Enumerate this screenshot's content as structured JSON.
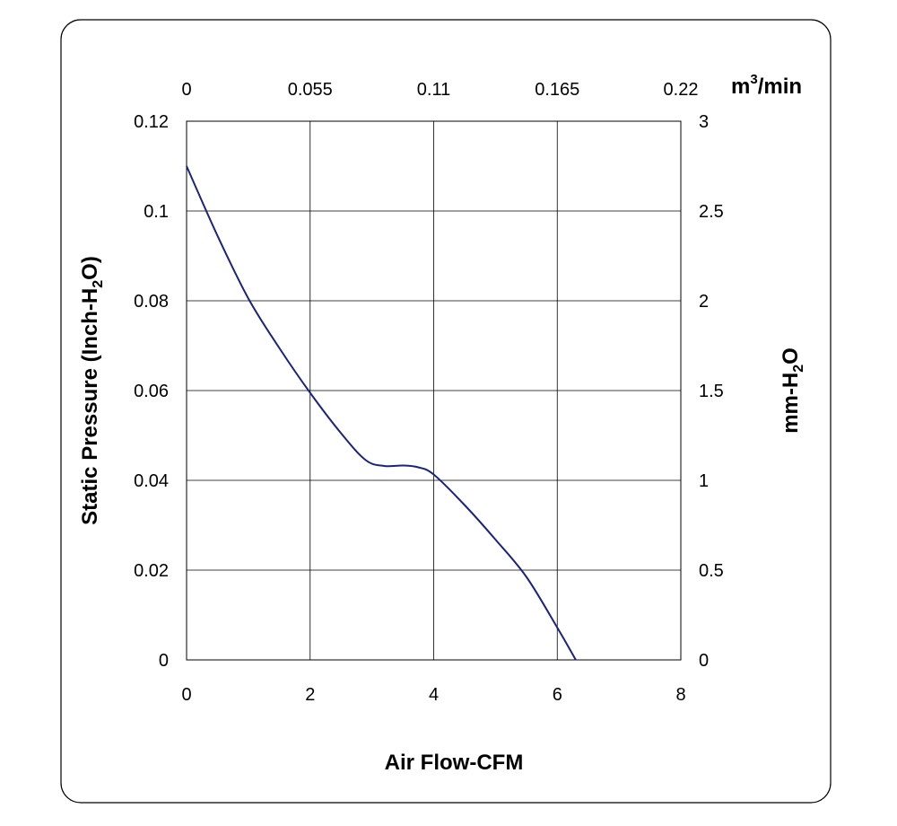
{
  "chart_data": {
    "type": "line",
    "xlabel": "Air Flow-CFM",
    "ylabel": {
      "pre": "Static Pressure (Inch-H",
      "sub": "2",
      "post": "O)"
    },
    "y2label": {
      "pre": "mm-H",
      "sub": "2",
      "post": "O"
    },
    "x2label": {
      "pre": "m",
      "sup": "3",
      "post": "/min"
    },
    "xlim": [
      0,
      8
    ],
    "ylim": [
      0,
      0.12
    ],
    "x2lim": [
      0,
      0.22
    ],
    "y2lim": [
      0,
      3
    ],
    "x_ticks": [
      "0",
      "2",
      "4",
      "6",
      "8"
    ],
    "y_ticks": [
      "0",
      "0.02",
      "0.04",
      "0.06",
      "0.08",
      "0.1",
      "0.12"
    ],
    "x2_ticks": [
      "0",
      "0.055",
      "0.11",
      "0.165",
      "0.22"
    ],
    "y2_ticks": [
      "0",
      "0.5",
      "1",
      "1.5",
      "2",
      "2.5",
      "3"
    ],
    "grid": true,
    "series": [
      {
        "color": "#1a237e",
        "x": [
          0,
          0.5,
          1,
          1.5,
          2,
          2.5,
          2.9,
          3.2,
          3.5,
          3.75,
          4,
          4.5,
          5,
          5.5,
          6,
          6.3
        ],
        "y": [
          0.11,
          0.0945,
          0.0805,
          0.0695,
          0.0595,
          0.0505,
          0.0445,
          0.0432,
          0.0433,
          0.0429,
          0.0413,
          0.0345,
          0.0268,
          0.0185,
          0.0072,
          0.0
        ]
      }
    ]
  }
}
